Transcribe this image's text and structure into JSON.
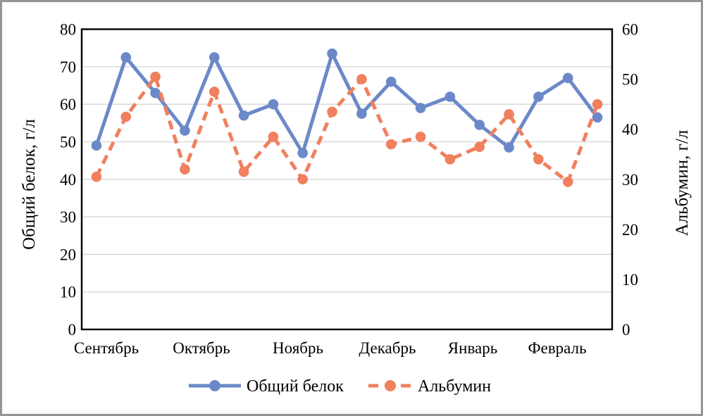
{
  "chart_data": {
    "type": "line",
    "title": "",
    "months": [
      "Сентябрь",
      "Октябрь",
      "Ноябрь",
      "Декабрь",
      "Январь",
      "Февраль"
    ],
    "points_per_month": 3,
    "left_axis": {
      "title": "Общий белок, г/л",
      "min": 0,
      "max": 80,
      "tick_step": 10,
      "tick_labels": [
        "0",
        "10",
        "20",
        "30",
        "40",
        "50",
        "60",
        "70",
        "80"
      ]
    },
    "right_axis": {
      "title": "Альбумин, г/л",
      "min": 0,
      "max": 60,
      "tick_step": 10,
      "tick_labels": [
        "0",
        "10",
        "20",
        "30",
        "40",
        "50",
        "60"
      ]
    },
    "grid": "horizontal gridlines at left-axis ticks",
    "legend_position": "bottom",
    "series": [
      {
        "key": "total-protein",
        "name": "Общий белок",
        "axis": "left",
        "color": "#6B89C8",
        "line_style": "solid",
        "marker": "circle",
        "values": [
          49,
          72.5,
          63,
          53,
          72.5,
          57,
          60,
          47,
          73.5,
          57.5,
          66,
          59,
          62,
          54.5,
          48.5,
          62,
          67,
          56.5
        ]
      },
      {
        "key": "albumin",
        "name": "Альбумин",
        "axis": "right",
        "color": "#F0805E",
        "line_style": "dashed",
        "marker": "circle",
        "values": [
          30.5,
          42.5,
          50.5,
          32,
          47.5,
          31.5,
          38.5,
          30,
          43.5,
          50,
          37,
          38.5,
          34,
          36.5,
          43,
          34,
          29.5,
          45
        ]
      }
    ],
    "colors": {
      "grid": "#D8D8D8",
      "axis_frame": "#000000",
      "text": "#000000",
      "figure_border": "#959595",
      "background": "#FFFFFF"
    }
  }
}
